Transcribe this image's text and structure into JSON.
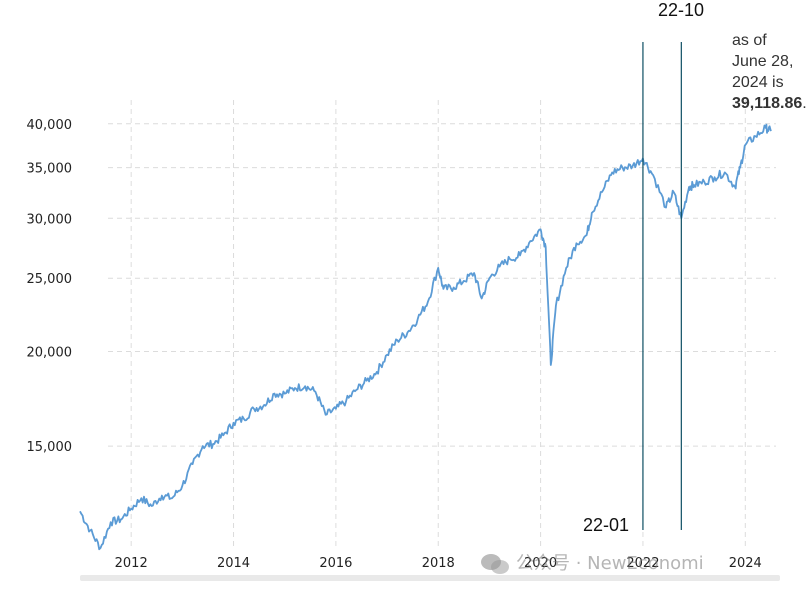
{
  "chart_data": {
    "type": "line",
    "title": "",
    "xlabel": "",
    "ylabel": "",
    "y_scale": "log",
    "ylim": [
      11000,
      43000
    ],
    "xlim": [
      2011.0,
      2024.6
    ],
    "grid": true,
    "x_ticks": [
      "2012",
      "2014",
      "2016",
      "2018",
      "2020",
      "2022",
      "2024"
    ],
    "y_ticks": [
      "15,000",
      "20,000",
      "25,000",
      "30,000",
      "35,000",
      "40,000"
    ],
    "line_color": "#5b9bd5",
    "marker_color": "#0d4f63",
    "series": [
      {
        "x": [
          2011.0,
          2011.2,
          2011.4,
          2011.6,
          2011.8,
          2012.0,
          2012.2,
          2012.4,
          2012.6,
          2012.8,
          2013.0,
          2013.2,
          2013.4,
          2013.6,
          2013.8,
          2014.0,
          2014.2,
          2014.4,
          2014.6,
          2014.8,
          2015.0,
          2015.2,
          2015.4,
          2015.6,
          2015.8,
          2016.0,
          2016.2,
          2016.4,
          2016.6,
          2016.8,
          2017.0,
          2017.2,
          2017.4,
          2017.6,
          2017.8,
          2018.0,
          2018.1,
          2018.3,
          2018.5,
          2018.7,
          2018.85,
          2019.0,
          2019.2,
          2019.4,
          2019.6,
          2019.8,
          2020.0,
          2020.1,
          2020.2,
          2020.3,
          2020.5,
          2020.7,
          2020.9,
          2021.0,
          2021.2,
          2021.4,
          2021.6,
          2021.8,
          2022.0,
          2022.2,
          2022.45,
          2022.6,
          2022.75,
          2022.9,
          2023.0,
          2023.2,
          2023.4,
          2023.6,
          2023.8,
          2023.9,
          2024.0,
          2024.2,
          2024.4,
          2024.5
        ],
        "y": [
          12300,
          11600,
          11000,
          11900,
          12000,
          12400,
          12800,
          12500,
          12900,
          12800,
          13300,
          14200,
          15000,
          15100,
          15500,
          16100,
          16300,
          16800,
          17000,
          17600,
          17600,
          17900,
          18000,
          17700,
          16500,
          16800,
          17200,
          17800,
          18300,
          18800,
          19800,
          20700,
          21200,
          22100,
          23300,
          25800,
          24200,
          24300,
          24800,
          25400,
          23500,
          25000,
          25900,
          26500,
          26800,
          28000,
          29000,
          27500,
          19200,
          23000,
          25800,
          27800,
          28500,
          30500,
          32500,
          34500,
          35000,
          35200,
          36000,
          34200,
          31000,
          32500,
          30000,
          33000,
          33200,
          33500,
          34000,
          34500,
          33000,
          35000,
          37500,
          38500,
          39500,
          39118.86
        ]
      }
    ],
    "markers": [
      {
        "x": 2022.0,
        "label": "22-01"
      },
      {
        "x": 2022.75,
        "label": "22-10"
      }
    ],
    "annotation": {
      "pre": "as of June 28, 2024 is ",
      "value": "39,118.86",
      "post": "."
    }
  },
  "watermark": "公众号 · NewEconomi"
}
